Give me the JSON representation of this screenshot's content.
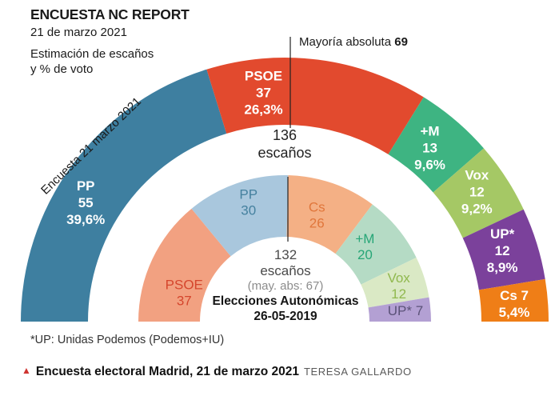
{
  "header": {
    "title": "ENCUESTA NC REPORT",
    "date": "21 de marzo 2021",
    "subtitle_line1": "Estimación de escaños",
    "subtitle_line2": "y % de voto"
  },
  "majority_annotation": {
    "label": "Mayoría absoluta",
    "value": "69"
  },
  "rotated_label": "Encuesta 21 marzo 2021",
  "outer_center": {
    "seats": "136",
    "unit": "escaños"
  },
  "inner_center": {
    "seats": "132",
    "unit": "escaños",
    "majority_note": "(may. abs: 67)",
    "title": "Elecciones Autonómicas",
    "date": "26-05-2019"
  },
  "footnote": "*UP: Unidas Podemos (Podemos+IU)",
  "caption": {
    "marker": "▲",
    "title": "Encuesta electoral Madrid, 21 de marzo 2021",
    "author": "TERESA GALLARDO"
  },
  "chart_data": [
    {
      "type": "hemicycle",
      "name": "Encuesta 21 marzo 2021",
      "total_seats": 136,
      "majority": 69,
      "series": [
        {
          "party": "PP",
          "seats": 55,
          "vote_pct": "39,6%",
          "color": "#3e7fa0",
          "label_color": "#ffffff",
          "label_lines": [
            "PP",
            "55",
            "39,6%"
          ]
        },
        {
          "party": "PSOE",
          "seats": 37,
          "vote_pct": "26,3%",
          "color": "#e24a2e",
          "label_color": "#ffffff",
          "label_lines": [
            "PSOE",
            "37",
            "26,3%"
          ]
        },
        {
          "party": "+M",
          "seats": 13,
          "vote_pct": "9,6%",
          "color": "#3eb482",
          "label_color": "#ffffff",
          "label_lines": [
            "+M",
            "13",
            "9,6%"
          ]
        },
        {
          "party": "Vox",
          "seats": 12,
          "vote_pct": "9,2%",
          "color": "#a5c865",
          "label_color": "#ffffff",
          "label_lines": [
            "Vox",
            "12",
            "9,2%"
          ]
        },
        {
          "party": "UP*",
          "seats": 12,
          "vote_pct": "8,9%",
          "color": "#7b419b",
          "label_color": "#ffffff",
          "label_lines": [
            "UP*",
            "12",
            "8,9%"
          ]
        },
        {
          "party": "Cs",
          "seats": 7,
          "vote_pct": "5,4%",
          "color": "#ef7e17",
          "label_color": "#ffffff",
          "label_lines": [
            "Cs 7",
            "5,4%"
          ]
        }
      ]
    },
    {
      "type": "hemicycle",
      "name": "Elecciones Autonómicas 26-05-2019",
      "total_seats": 132,
      "majority": 67,
      "series": [
        {
          "party": "PSOE",
          "seats": 37,
          "color": "#f2a181",
          "label_color": "#d5462d",
          "label_lines": [
            "PSOE",
            "37"
          ]
        },
        {
          "party": "PP",
          "seats": 30,
          "color": "#a9c7dd",
          "label_color": "#45819f",
          "label_lines": [
            "PP",
            "30"
          ]
        },
        {
          "party": "Cs",
          "seats": 26,
          "color": "#f4b085",
          "label_color": "#e0763b",
          "label_lines": [
            "Cs",
            "26"
          ]
        },
        {
          "party": "+M",
          "seats": 20,
          "color": "#b5dbc5",
          "label_color": "#27a677",
          "label_lines": [
            "+M",
            "20"
          ]
        },
        {
          "party": "Vox",
          "seats": 12,
          "color": "#dae9c5",
          "label_color": "#90b84e",
          "label_lines": [
            "Vox",
            "12"
          ]
        },
        {
          "party": "UP*",
          "seats": 7,
          "color": "#b3a0d3",
          "label_color": "#5b5278",
          "label_lines": [
            "UP* 7"
          ]
        }
      ]
    }
  ]
}
